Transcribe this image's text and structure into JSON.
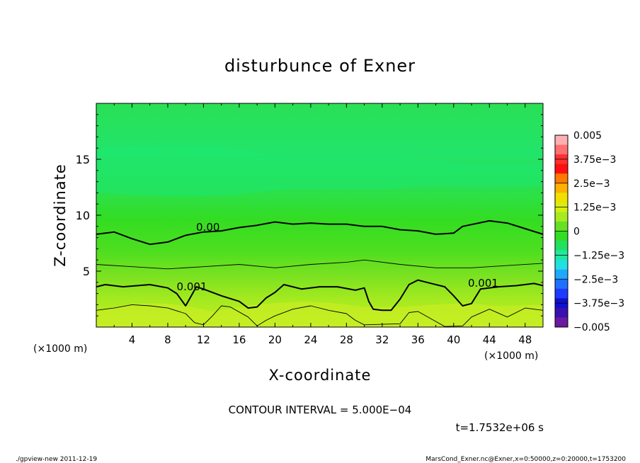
{
  "chart_data": {
    "type": "heatmap",
    "title": "disturbunce of Exner",
    "xlabel": "X-coordinate",
    "ylabel": "Z-coordinate",
    "x_unit_left": "(×1000 m)",
    "x_unit_right": "(×1000 m)",
    "xlim": [
      0,
      50
    ],
    "ylim": [
      0,
      20
    ],
    "x_ticks": [
      {
        "v": 4,
        "label": "4"
      },
      {
        "v": 8,
        "label": "8"
      },
      {
        "v": 12,
        "label": "12"
      },
      {
        "v": 16,
        "label": "16"
      },
      {
        "v": 20,
        "label": "20"
      },
      {
        "v": 24,
        "label": "24"
      },
      {
        "v": 28,
        "label": "28"
      },
      {
        "v": 32,
        "label": "32"
      },
      {
        "v": 36,
        "label": "36"
      },
      {
        "v": 40,
        "label": "40"
      },
      {
        "v": 44,
        "label": "44"
      },
      {
        "v": 48,
        "label": "48"
      }
    ],
    "y_ticks": [
      {
        "v": 5,
        "label": "5"
      },
      {
        "v": 10,
        "label": "10"
      },
      {
        "v": 15,
        "label": "15"
      }
    ],
    "colorbar": {
      "range": [
        -0.005,
        0.005
      ],
      "labels": [
        {
          "v": 0.005,
          "label": "0.005"
        },
        {
          "v": 0.00375,
          "label": "3.75e−3"
        },
        {
          "v": 0.0025,
          "label": "2.5e−3"
        },
        {
          "v": 0.00125,
          "label": "1.25e−3"
        },
        {
          "v": 0,
          "label": "0"
        },
        {
          "v": -0.00125,
          "label": "−1.25e−3"
        },
        {
          "v": -0.0025,
          "label": "−2.5e−3"
        },
        {
          "v": -0.00375,
          "label": "−3.75e−3"
        },
        {
          "v": -0.005,
          "label": "−0.005"
        }
      ]
    },
    "contour_interval_text": "CONTOUR INTERVAL = 5.000E−04",
    "time_text": "t=1.7532e+06 s",
    "contours": [
      {
        "level": 0.0,
        "label": "0.00",
        "label_pos": [
          12.5,
          8.6
        ],
        "thick": true,
        "points": [
          [
            0,
            8.3
          ],
          [
            2,
            8.5
          ],
          [
            4,
            7.9
          ],
          [
            6,
            7.4
          ],
          [
            8,
            7.6
          ],
          [
            10,
            8.2
          ],
          [
            12,
            8.5
          ],
          [
            14,
            8.6
          ],
          [
            16,
            8.9
          ],
          [
            18,
            9.1
          ],
          [
            20,
            9.4
          ],
          [
            22,
            9.2
          ],
          [
            24,
            9.3
          ],
          [
            26,
            9.2
          ],
          [
            28,
            9.2
          ],
          [
            30,
            9.0
          ],
          [
            32,
            9.0
          ],
          [
            34,
            8.7
          ],
          [
            36,
            8.6
          ],
          [
            38,
            8.3
          ],
          [
            40,
            8.4
          ],
          [
            41,
            9.0
          ],
          [
            44,
            9.5
          ],
          [
            46,
            9.3
          ],
          [
            48,
            8.8
          ],
          [
            50,
            8.3
          ]
        ]
      },
      {
        "level": 0.0005,
        "label": "",
        "thick": false,
        "points": [
          [
            0,
            5.6
          ],
          [
            4,
            5.4
          ],
          [
            8,
            5.2
          ],
          [
            12,
            5.4
          ],
          [
            16,
            5.6
          ],
          [
            20,
            5.3
          ],
          [
            24,
            5.6
          ],
          [
            28,
            5.8
          ],
          [
            30,
            6.0
          ],
          [
            34,
            5.6
          ],
          [
            38,
            5.3
          ],
          [
            42,
            5.3
          ],
          [
            46,
            5.5
          ],
          [
            50,
            5.7
          ]
        ]
      },
      {
        "level": 0.001,
        "label": "0.001",
        "label_pos": [
          10.7,
          3.3
        ],
        "label2": "0.001",
        "label2_pos": [
          43.3,
          3.6
        ],
        "thick": true,
        "points": [
          [
            0,
            3.6
          ],
          [
            1,
            3.8
          ],
          [
            3,
            3.6
          ],
          [
            6,
            3.8
          ],
          [
            8,
            3.5
          ],
          [
            9,
            3.0
          ],
          [
            10,
            1.9
          ],
          [
            10.5,
            2.6
          ],
          [
            11.2,
            3.6
          ],
          [
            12,
            3.4
          ],
          [
            14,
            2.8
          ],
          [
            16,
            2.3
          ],
          [
            17,
            1.7
          ],
          [
            18,
            1.8
          ],
          [
            19,
            2.6
          ],
          [
            20,
            3.1
          ],
          [
            21,
            3.8
          ],
          [
            23,
            3.4
          ],
          [
            25,
            3.6
          ],
          [
            27,
            3.6
          ],
          [
            29,
            3.3
          ],
          [
            30,
            3.5
          ],
          [
            30.5,
            2.3
          ],
          [
            31,
            1.6
          ],
          [
            32,
            1.5
          ],
          [
            33,
            1.5
          ],
          [
            34,
            2.5
          ],
          [
            35,
            3.8
          ],
          [
            36,
            4.2
          ],
          [
            37,
            4.0
          ],
          [
            39,
            3.6
          ],
          [
            40,
            2.8
          ],
          [
            41,
            1.9
          ],
          [
            42,
            2.1
          ],
          [
            43,
            3.4
          ],
          [
            45,
            3.6
          ],
          [
            47,
            3.7
          ],
          [
            49,
            3.9
          ],
          [
            50,
            3.7
          ]
        ]
      },
      {
        "level": 0.0015,
        "label": "",
        "thick": false,
        "points": [
          [
            0,
            1.5
          ],
          [
            2,
            1.7
          ],
          [
            4,
            2.0
          ],
          [
            6,
            1.9
          ],
          [
            8,
            1.7
          ],
          [
            10,
            1.2
          ],
          [
            11,
            0.4
          ],
          [
            12,
            0.2
          ],
          [
            13,
            1.0
          ],
          [
            14,
            1.9
          ],
          [
            15,
            1.8
          ],
          [
            17,
            0.9
          ],
          [
            18,
            0.1
          ],
          [
            19,
            0.6
          ],
          [
            20,
            1.0
          ],
          [
            22,
            1.6
          ],
          [
            24,
            1.9
          ],
          [
            26,
            1.5
          ],
          [
            28,
            1.2
          ],
          [
            29,
            0.6
          ],
          [
            30,
            0.2
          ],
          [
            34,
            0.3
          ],
          [
            35,
            1.3
          ],
          [
            36,
            1.4
          ],
          [
            38,
            0.5
          ],
          [
            39,
            0.05
          ],
          [
            41,
            0.1
          ],
          [
            42,
            0.9
          ],
          [
            44,
            1.6
          ],
          [
            46,
            0.9
          ],
          [
            48,
            1.7
          ],
          [
            50,
            1.5
          ]
        ]
      }
    ],
    "colors": {
      "top": "#22e055",
      "upper_light": "#24e866",
      "mid": "#33dd22",
      "lower": "#66e022",
      "bottom": "#b0ee20",
      "contour": "#000000"
    },
    "grid": false,
    "legend": "right (colorbar)"
  },
  "footer": {
    "left": "./gpview-new  2011-12-19",
    "right": "MarsCond_Exner.nc@Exner,x=0:50000,z=0:20000,t=1753200"
  }
}
